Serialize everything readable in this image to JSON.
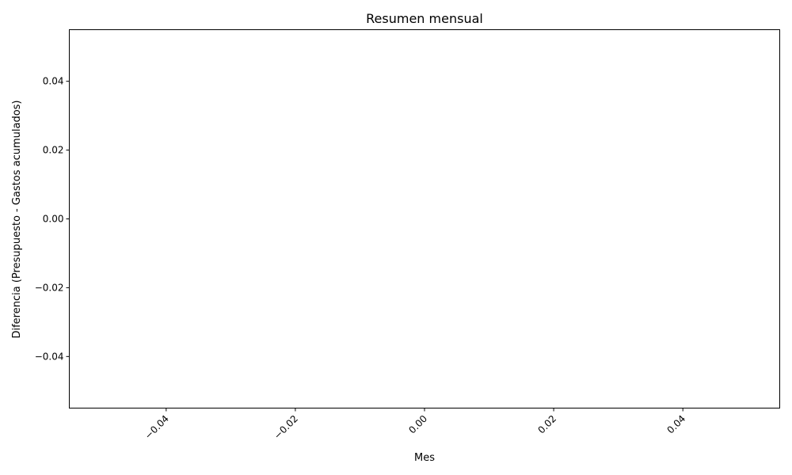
{
  "chart_data": {
    "type": "line",
    "title": "Resumen mensual",
    "xlabel": "Mes",
    "ylabel": "Diferencia (Presupuesto - Gastos acumulados)",
    "xlim": [
      -0.055,
      0.055
    ],
    "ylim": [
      -0.055,
      0.055
    ],
    "x_ticks": [
      -0.04,
      -0.02,
      0.0,
      0.02,
      0.04
    ],
    "x_tick_labels": [
      "−0.04",
      "−0.02",
      "0.00",
      "0.02",
      "0.04"
    ],
    "y_ticks": [
      -0.04,
      -0.02,
      0.0,
      0.02,
      0.04
    ],
    "y_tick_labels": [
      "−0.04",
      "−0.02",
      "0.00",
      "0.02",
      "0.04"
    ],
    "x_tick_rotation_deg": 45,
    "grid": false,
    "legend": "none",
    "series": [],
    "colors": {
      "frame": "#000000",
      "text": "#000000",
      "background": "#ffffff"
    }
  }
}
